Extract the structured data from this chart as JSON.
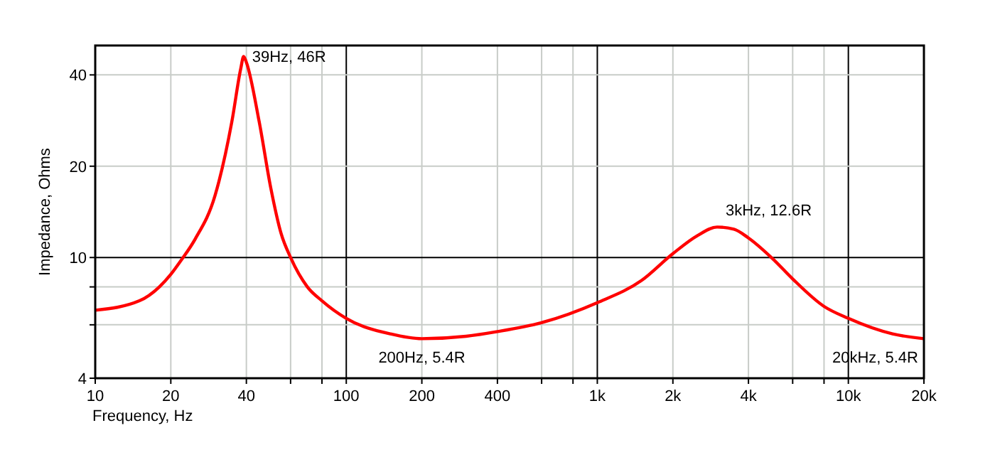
{
  "chart_data": {
    "type": "line",
    "xlabel": "Frequency, Hz",
    "ylabel": "Impedance, Ohms",
    "log": "xy",
    "grid": true,
    "line_style": "solid",
    "xlim": [
      10,
      20000
    ],
    "ylim": [
      4,
      50
    ],
    "xticks": [
      10,
      20,
      40,
      {
        "value": 60,
        "label": null
      },
      {
        "value": 80,
        "label": null
      },
      100,
      200,
      400,
      {
        "value": 600,
        "label": null
      },
      {
        "value": 800,
        "label": null
      },
      {
        "value": 1000,
        "label": "1k"
      },
      {
        "value": 2000,
        "label": "2k"
      },
      {
        "value": 4000,
        "label": "4k"
      },
      {
        "value": 6000,
        "label": null
      },
      {
        "value": 8000,
        "label": null
      },
      {
        "value": 10000,
        "label": "10k"
      },
      {
        "value": 20000,
        "label": "20k"
      }
    ],
    "yticks": [
      4,
      {
        "value": 6,
        "label": null
      },
      {
        "value": 8,
        "label": null
      },
      10,
      20,
      40
    ],
    "series": [
      {
        "color": "#ff0000",
        "x": [
          10,
          15,
          18,
          20,
          22,
          25,
          30,
          35,
          38,
          39,
          40,
          45,
          50,
          55,
          60,
          70,
          80,
          100,
          150,
          200,
          300,
          400,
          600,
          1000,
          1500,
          2000,
          2500,
          3000,
          3500,
          4000,
          5000,
          6000,
          8000,
          10000,
          15000,
          20000
        ],
        "values": [
          6.7,
          7.2,
          8,
          8.8,
          9.8,
          11.5,
          16,
          28,
          42,
          46,
          44,
          28,
          17,
          12,
          10,
          8,
          7.2,
          6.3,
          5.6,
          5.4,
          5.5,
          5.7,
          6.1,
          7.1,
          8.4,
          10.3,
          11.8,
          12.6,
          12.4,
          11.6,
          9.9,
          8.5,
          6.9,
          6.3,
          5.6,
          5.4
        ]
      }
    ],
    "annotations": [
      {
        "text": "39Hz, 46R",
        "x": 39,
        "y": 46
      },
      {
        "text": "200Hz, 5.4R",
        "x": 200,
        "y": 5.4
      },
      {
        "text": "3kHz, 12.6R",
        "x": 3000,
        "y": 12.6
      },
      {
        "text": "20kHz, 5.4R",
        "x": 20000,
        "y": 5.4
      }
    ]
  }
}
